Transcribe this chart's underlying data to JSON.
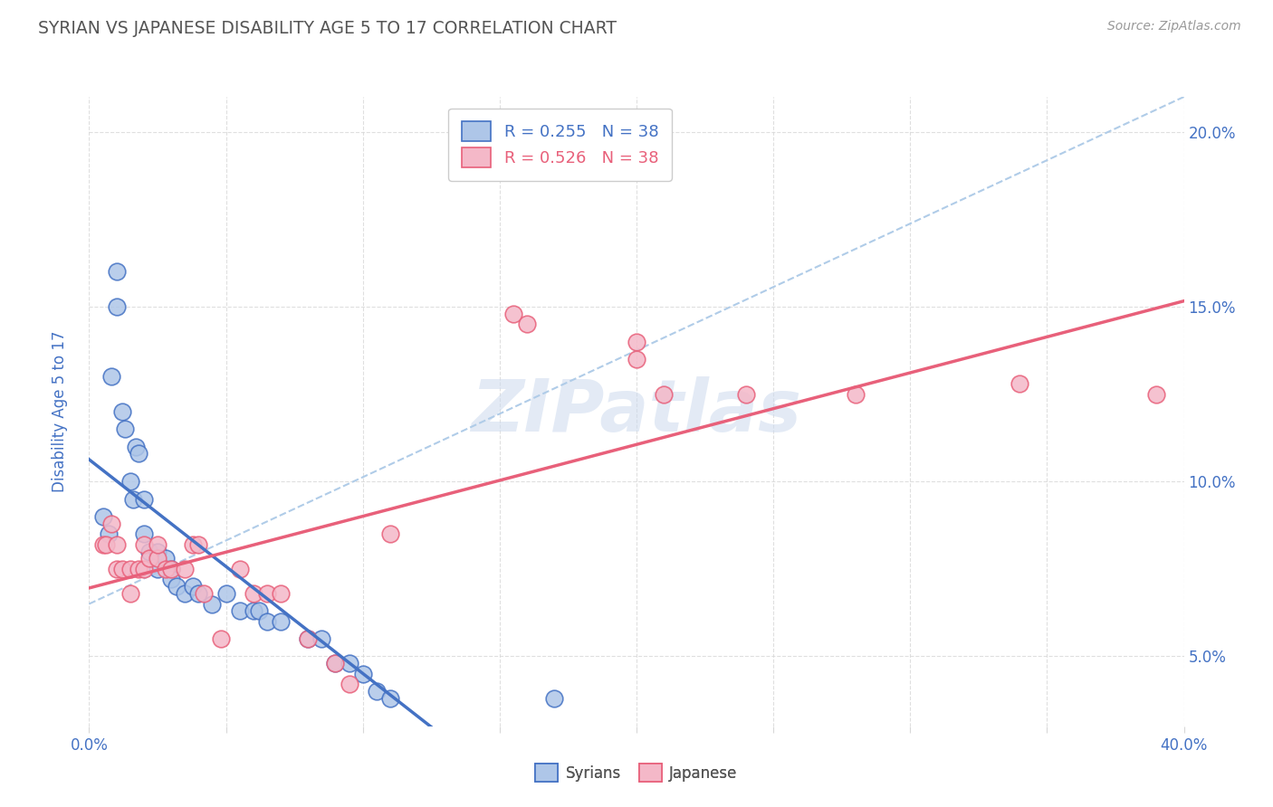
{
  "title": "SYRIAN VS JAPANESE DISABILITY AGE 5 TO 17 CORRELATION CHART",
  "source": "Source: ZipAtlas.com",
  "ylabel": "Disability Age 5 to 17",
  "xlim": [
    0.0,
    0.4
  ],
  "ylim": [
    0.03,
    0.21
  ],
  "xticks": [
    0.0,
    0.05,
    0.1,
    0.15,
    0.2,
    0.25,
    0.3,
    0.35,
    0.4
  ],
  "ytick_right_labels": [
    "5.0%",
    "10.0%",
    "15.0%",
    "20.0%"
  ],
  "ytick_right_values": [
    0.05,
    0.1,
    0.15,
    0.2
  ],
  "legend_r1": "R = 0.255   N = 38",
  "legend_r2": "R = 0.526   N = 38",
  "syrian_color": "#aec6e8",
  "japanese_color": "#f4b8c8",
  "line_syrian_color": "#4472c4",
  "line_japanese_color": "#e8607a",
  "ref_line_color": "#b0cce8",
  "watermark": "ZIPatlas",
  "background_color": "#ffffff",
  "grid_color": "#d8d8d8",
  "title_color": "#555555",
  "axis_label_color": "#4472c4",
  "syrian_points": [
    [
      0.005,
      0.09
    ],
    [
      0.007,
      0.085
    ],
    [
      0.008,
      0.13
    ],
    [
      0.01,
      0.16
    ],
    [
      0.01,
      0.15
    ],
    [
      0.012,
      0.12
    ],
    [
      0.013,
      0.115
    ],
    [
      0.015,
      0.1
    ],
    [
      0.016,
      0.095
    ],
    [
      0.017,
      0.11
    ],
    [
      0.018,
      0.108
    ],
    [
      0.02,
      0.095
    ],
    [
      0.02,
      0.085
    ],
    [
      0.022,
      0.08
    ],
    [
      0.025,
      0.075
    ],
    [
      0.025,
      0.08
    ],
    [
      0.028,
      0.078
    ],
    [
      0.03,
      0.075
    ],
    [
      0.03,
      0.072
    ],
    [
      0.032,
      0.07
    ],
    [
      0.035,
      0.068
    ],
    [
      0.038,
      0.07
    ],
    [
      0.04,
      0.068
    ],
    [
      0.045,
      0.065
    ],
    [
      0.05,
      0.068
    ],
    [
      0.055,
      0.063
    ],
    [
      0.06,
      0.063
    ],
    [
      0.062,
      0.063
    ],
    [
      0.065,
      0.06
    ],
    [
      0.07,
      0.06
    ],
    [
      0.08,
      0.055
    ],
    [
      0.085,
      0.055
    ],
    [
      0.09,
      0.048
    ],
    [
      0.095,
      0.048
    ],
    [
      0.1,
      0.045
    ],
    [
      0.105,
      0.04
    ],
    [
      0.11,
      0.038
    ],
    [
      0.17,
      0.038
    ]
  ],
  "japanese_points": [
    [
      0.005,
      0.082
    ],
    [
      0.006,
      0.082
    ],
    [
      0.008,
      0.088
    ],
    [
      0.01,
      0.082
    ],
    [
      0.01,
      0.075
    ],
    [
      0.012,
      0.075
    ],
    [
      0.015,
      0.075
    ],
    [
      0.015,
      0.068
    ],
    [
      0.018,
      0.075
    ],
    [
      0.02,
      0.082
    ],
    [
      0.02,
      0.075
    ],
    [
      0.022,
      0.078
    ],
    [
      0.025,
      0.078
    ],
    [
      0.025,
      0.082
    ],
    [
      0.028,
      0.075
    ],
    [
      0.03,
      0.075
    ],
    [
      0.035,
      0.075
    ],
    [
      0.038,
      0.082
    ],
    [
      0.04,
      0.082
    ],
    [
      0.042,
      0.068
    ],
    [
      0.048,
      0.055
    ],
    [
      0.055,
      0.075
    ],
    [
      0.06,
      0.068
    ],
    [
      0.065,
      0.068
    ],
    [
      0.07,
      0.068
    ],
    [
      0.08,
      0.055
    ],
    [
      0.09,
      0.048
    ],
    [
      0.095,
      0.042
    ],
    [
      0.11,
      0.085
    ],
    [
      0.155,
      0.148
    ],
    [
      0.16,
      0.145
    ],
    [
      0.2,
      0.14
    ],
    [
      0.2,
      0.135
    ],
    [
      0.21,
      0.125
    ],
    [
      0.24,
      0.125
    ],
    [
      0.28,
      0.125
    ],
    [
      0.34,
      0.128
    ],
    [
      0.39,
      0.125
    ]
  ]
}
